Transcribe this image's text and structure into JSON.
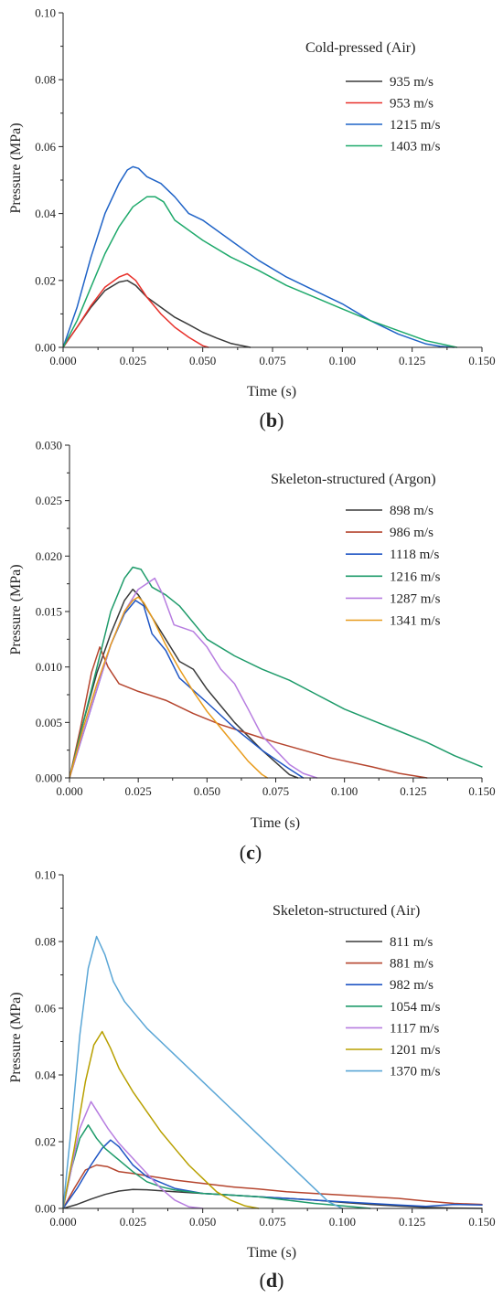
{
  "figure": {
    "panels": [
      {
        "label_open": "(",
        "label_letter": "b",
        "label_close": ")"
      },
      {
        "label_open": "(",
        "label_letter": "c",
        "label_close": ")"
      },
      {
        "label_open": "(",
        "label_letter": "d",
        "label_close": ")"
      }
    ]
  },
  "chart_data": [
    {
      "type": "line",
      "title": "",
      "legend_title": "Cold-pressed (Air)",
      "legend_position": "top-right",
      "xlabel": "Time (s)",
      "ylabel": "Pressure (MPa)",
      "xlim": [
        0,
        0.15
      ],
      "ylim": [
        0,
        0.1
      ],
      "xticks": [
        "0.000",
        "0.025",
        "0.050",
        "0.075",
        "0.100",
        "0.125",
        "0.150"
      ],
      "yticks": [
        "0.00",
        "0.02",
        "0.04",
        "0.06",
        "0.08",
        "0.10"
      ],
      "grid": false,
      "series": [
        {
          "name": "935  m/s",
          "color": "#3a3a3a",
          "x": [
            0,
            0.005,
            0.01,
            0.015,
            0.02,
            0.023,
            0.026,
            0.03,
            0.035,
            0.04,
            0.045,
            0.05,
            0.055,
            0.06,
            0.067
          ],
          "y": [
            0,
            0.006,
            0.012,
            0.017,
            0.0195,
            0.02,
            0.0185,
            0.015,
            0.012,
            0.009,
            0.0068,
            0.0045,
            0.0028,
            0.0012,
            0
          ]
        },
        {
          "name": "953  m/s",
          "color": "#e8312b",
          "x": [
            0,
            0.005,
            0.01,
            0.015,
            0.02,
            0.023,
            0.026,
            0.03,
            0.035,
            0.04,
            0.045,
            0.05,
            0.052
          ],
          "y": [
            0,
            0.006,
            0.0125,
            0.018,
            0.021,
            0.022,
            0.02,
            0.015,
            0.01,
            0.006,
            0.003,
            0.0005,
            0
          ]
        },
        {
          "name": "1215 m/s",
          "color": "#1f63c7",
          "x": [
            0,
            0.005,
            0.01,
            0.015,
            0.02,
            0.023,
            0.025,
            0.027,
            0.03,
            0.035,
            0.04,
            0.045,
            0.05,
            0.06,
            0.07,
            0.08,
            0.09,
            0.1,
            0.11,
            0.12,
            0.13,
            0.135,
            0.14
          ],
          "y": [
            0,
            0.012,
            0.027,
            0.04,
            0.049,
            0.053,
            0.054,
            0.0535,
            0.051,
            0.049,
            0.045,
            0.04,
            0.038,
            0.032,
            0.026,
            0.021,
            0.017,
            0.013,
            0.008,
            0.004,
            0.001,
            0.0003,
            0
          ]
        },
        {
          "name": "1403 m/s",
          "color": "#1ea96b",
          "x": [
            0,
            0.005,
            0.01,
            0.015,
            0.02,
            0.025,
            0.03,
            0.033,
            0.036,
            0.04,
            0.05,
            0.06,
            0.07,
            0.08,
            0.09,
            0.1,
            0.11,
            0.12,
            0.13,
            0.141
          ],
          "y": [
            0,
            0.008,
            0.018,
            0.028,
            0.036,
            0.042,
            0.045,
            0.045,
            0.0435,
            0.038,
            0.032,
            0.027,
            0.023,
            0.0185,
            0.015,
            0.0115,
            0.008,
            0.005,
            0.002,
            0
          ]
        }
      ]
    },
    {
      "type": "line",
      "title": "",
      "legend_title": "Skeleton-structured (Argon)",
      "legend_position": "top-right",
      "xlabel": "Time (s)",
      "ylabel": "Pressure (MPa)",
      "xlim": [
        0,
        0.15
      ],
      "ylim": [
        0,
        0.03
      ],
      "xticks": [
        "0.000",
        "0.025",
        "0.050",
        "0.075",
        "0.100",
        "0.125",
        "0.150"
      ],
      "yticks": [
        "0.000",
        "0.005",
        "0.010",
        "0.015",
        "0.020",
        "0.025",
        "0.030"
      ],
      "grid": false,
      "series": [
        {
          "name": "898  m/s",
          "color": "#3a3a3a",
          "x": [
            0,
            0.005,
            0.01,
            0.015,
            0.02,
            0.023,
            0.025,
            0.03,
            0.035,
            0.04,
            0.045,
            0.05,
            0.06,
            0.07,
            0.08,
            0.083
          ],
          "y": [
            0,
            0.005,
            0.0095,
            0.013,
            0.016,
            0.017,
            0.0165,
            0.0145,
            0.0125,
            0.0105,
            0.0098,
            0.008,
            0.005,
            0.0025,
            0.0003,
            0
          ]
        },
        {
          "name": "986  m/s",
          "color": "#b5452e",
          "x": [
            0,
            0.004,
            0.008,
            0.011,
            0.014,
            0.018,
            0.025,
            0.035,
            0.045,
            0.055,
            0.065,
            0.075,
            0.085,
            0.095,
            0.11,
            0.12,
            0.13
          ],
          "y": [
            0,
            0.0045,
            0.0095,
            0.0118,
            0.01,
            0.0085,
            0.0078,
            0.007,
            0.0058,
            0.0048,
            0.004,
            0.0032,
            0.0025,
            0.0018,
            0.001,
            0.0004,
            0
          ]
        },
        {
          "name": "1118 m/s",
          "color": "#1f55c4",
          "x": [
            0,
            0.005,
            0.01,
            0.015,
            0.02,
            0.024,
            0.027,
            0.03,
            0.035,
            0.04,
            0.05,
            0.06,
            0.07,
            0.08,
            0.085
          ],
          "y": [
            0,
            0.004,
            0.008,
            0.012,
            0.0148,
            0.016,
            0.0155,
            0.013,
            0.0115,
            0.009,
            0.0068,
            0.0045,
            0.0025,
            0.0008,
            0
          ]
        },
        {
          "name": "1216 m/s",
          "color": "#1e9b6a",
          "x": [
            0,
            0.005,
            0.01,
            0.015,
            0.02,
            0.023,
            0.026,
            0.03,
            0.035,
            0.04,
            0.05,
            0.06,
            0.07,
            0.08,
            0.09,
            0.1,
            0.11,
            0.12,
            0.13,
            0.14,
            0.15
          ],
          "y": [
            0,
            0.005,
            0.01,
            0.015,
            0.018,
            0.019,
            0.0188,
            0.0172,
            0.0165,
            0.0155,
            0.0125,
            0.011,
            0.0098,
            0.0088,
            0.0075,
            0.0062,
            0.0052,
            0.0042,
            0.0032,
            0.002,
            0.001
          ]
        },
        {
          "name": "1287 m/s",
          "color": "#b77de0",
          "x": [
            0,
            0.005,
            0.01,
            0.015,
            0.02,
            0.025,
            0.028,
            0.031,
            0.034,
            0.038,
            0.045,
            0.05,
            0.055,
            0.06,
            0.065,
            0.07,
            0.075,
            0.08,
            0.085,
            0.09
          ],
          "y": [
            0,
            0.004,
            0.008,
            0.012,
            0.015,
            0.017,
            0.0175,
            0.018,
            0.0165,
            0.0138,
            0.0132,
            0.0118,
            0.0098,
            0.0085,
            0.0062,
            0.0038,
            0.0025,
            0.0012,
            0.0004,
            0
          ]
        },
        {
          "name": "1341 m/s",
          "color": "#e89b1c",
          "x": [
            0,
            0.005,
            0.01,
            0.015,
            0.02,
            0.023,
            0.025,
            0.027,
            0.03,
            0.035,
            0.04,
            0.045,
            0.05,
            0.055,
            0.06,
            0.065,
            0.07,
            0.072
          ],
          "y": [
            0,
            0.0045,
            0.0085,
            0.012,
            0.015,
            0.016,
            0.0163,
            0.0158,
            0.0145,
            0.012,
            0.0098,
            0.0078,
            0.006,
            0.0045,
            0.003,
            0.0015,
            0.0003,
            0
          ]
        }
      ]
    },
    {
      "type": "line",
      "title": "",
      "legend_title": "Skeleton-structured (Air)",
      "legend_position": "top-right",
      "xlabel": "Time (s)",
      "ylabel": "Pressure (MPa)",
      "xlim": [
        0,
        0.15
      ],
      "ylim": [
        0,
        0.1
      ],
      "xticks": [
        "0.000",
        "0.025",
        "0.050",
        "0.075",
        "0.100",
        "0.125",
        "0.150"
      ],
      "yticks": [
        "0.00",
        "0.02",
        "0.04",
        "0.06",
        "0.08",
        "0.10"
      ],
      "grid": false,
      "series": [
        {
          "name": "811  m/s",
          "color": "#3a3a3a",
          "x": [
            0,
            0.005,
            0.01,
            0.015,
            0.02,
            0.025,
            0.03,
            0.04,
            0.05,
            0.06,
            0.07,
            0.08,
            0.09,
            0.1,
            0.11,
            0.12,
            0.13,
            0.14,
            0.15
          ],
          "y": [
            0,
            0.0012,
            0.0028,
            0.0042,
            0.0052,
            0.0057,
            0.0056,
            0.005,
            0.0045,
            0.004,
            0.0035,
            0.003,
            0.0025,
            0.0018,
            0.0012,
            0.0007,
            0.0003,
            0.0001,
            0
          ]
        },
        {
          "name": "881  m/s",
          "color": "#b5452e",
          "x": [
            0,
            0.004,
            0.008,
            0.012,
            0.016,
            0.02,
            0.025,
            0.03,
            0.04,
            0.05,
            0.06,
            0.07,
            0.08,
            0.09,
            0.1,
            0.11,
            0.12,
            0.13,
            0.14,
            0.15
          ],
          "y": [
            0,
            0.006,
            0.0115,
            0.013,
            0.0125,
            0.011,
            0.0105,
            0.0098,
            0.0085,
            0.0075,
            0.0065,
            0.0058,
            0.005,
            0.0045,
            0.004,
            0.0035,
            0.003,
            0.0022,
            0.0015,
            0.0012
          ]
        },
        {
          "name": "982  m/s",
          "color": "#1f55c4",
          "x": [
            0,
            0.005,
            0.01,
            0.014,
            0.017,
            0.02,
            0.025,
            0.03,
            0.04,
            0.05,
            0.06,
            0.07,
            0.08,
            0.09,
            0.1,
            0.11,
            0.12,
            0.13,
            0.14,
            0.15
          ],
          "y": [
            0,
            0.006,
            0.013,
            0.018,
            0.0205,
            0.0185,
            0.013,
            0.0095,
            0.006,
            0.0045,
            0.004,
            0.0035,
            0.003,
            0.0025,
            0.002,
            0.0015,
            0.001,
            0.0006,
            0.0012,
            0.001
          ]
        },
        {
          "name": "1054 m/s",
          "color": "#1e9b6a",
          "x": [
            0,
            0.003,
            0.006,
            0.009,
            0.012,
            0.015,
            0.02,
            0.025,
            0.03,
            0.035,
            0.04,
            0.05,
            0.06,
            0.07,
            0.08,
            0.09,
            0.1,
            0.11
          ],
          "y": [
            0,
            0.012,
            0.021,
            0.025,
            0.021,
            0.018,
            0.0145,
            0.011,
            0.008,
            0.0065,
            0.0055,
            0.0045,
            0.004,
            0.0035,
            0.0025,
            0.0015,
            0.0008,
            0
          ]
        },
        {
          "name": "1117 m/s",
          "color": "#b77de0",
          "x": [
            0,
            0.003,
            0.006,
            0.01,
            0.013,
            0.016,
            0.02,
            0.025,
            0.03,
            0.035,
            0.04,
            0.045,
            0.05
          ],
          "y": [
            0,
            0.012,
            0.024,
            0.032,
            0.028,
            0.024,
            0.0195,
            0.015,
            0.0105,
            0.006,
            0.0025,
            0.0005,
            0
          ]
        },
        {
          "name": "1201 m/s",
          "color": "#b8a000",
          "x": [
            0,
            0.004,
            0.008,
            0.011,
            0.014,
            0.017,
            0.02,
            0.025,
            0.03,
            0.035,
            0.04,
            0.045,
            0.05,
            0.055,
            0.06,
            0.065,
            0.07
          ],
          "y": [
            0,
            0.018,
            0.038,
            0.049,
            0.053,
            0.048,
            0.042,
            0.035,
            0.029,
            0.023,
            0.018,
            0.013,
            0.009,
            0.005,
            0.0025,
            0.0008,
            0
          ]
        },
        {
          "name": "1370 m/s",
          "color": "#5aa6d6",
          "x": [
            0,
            0.003,
            0.006,
            0.009,
            0.012,
            0.015,
            0.018,
            0.022,
            0.026,
            0.03,
            0.04,
            0.05,
            0.06,
            0.07,
            0.08,
            0.09,
            0.095,
            0.1
          ],
          "y": [
            0,
            0.025,
            0.052,
            0.072,
            0.0815,
            0.076,
            0.068,
            0.062,
            0.058,
            0.054,
            0.046,
            0.038,
            0.03,
            0.022,
            0.014,
            0.006,
            0.002,
            0
          ]
        }
      ]
    }
  ]
}
